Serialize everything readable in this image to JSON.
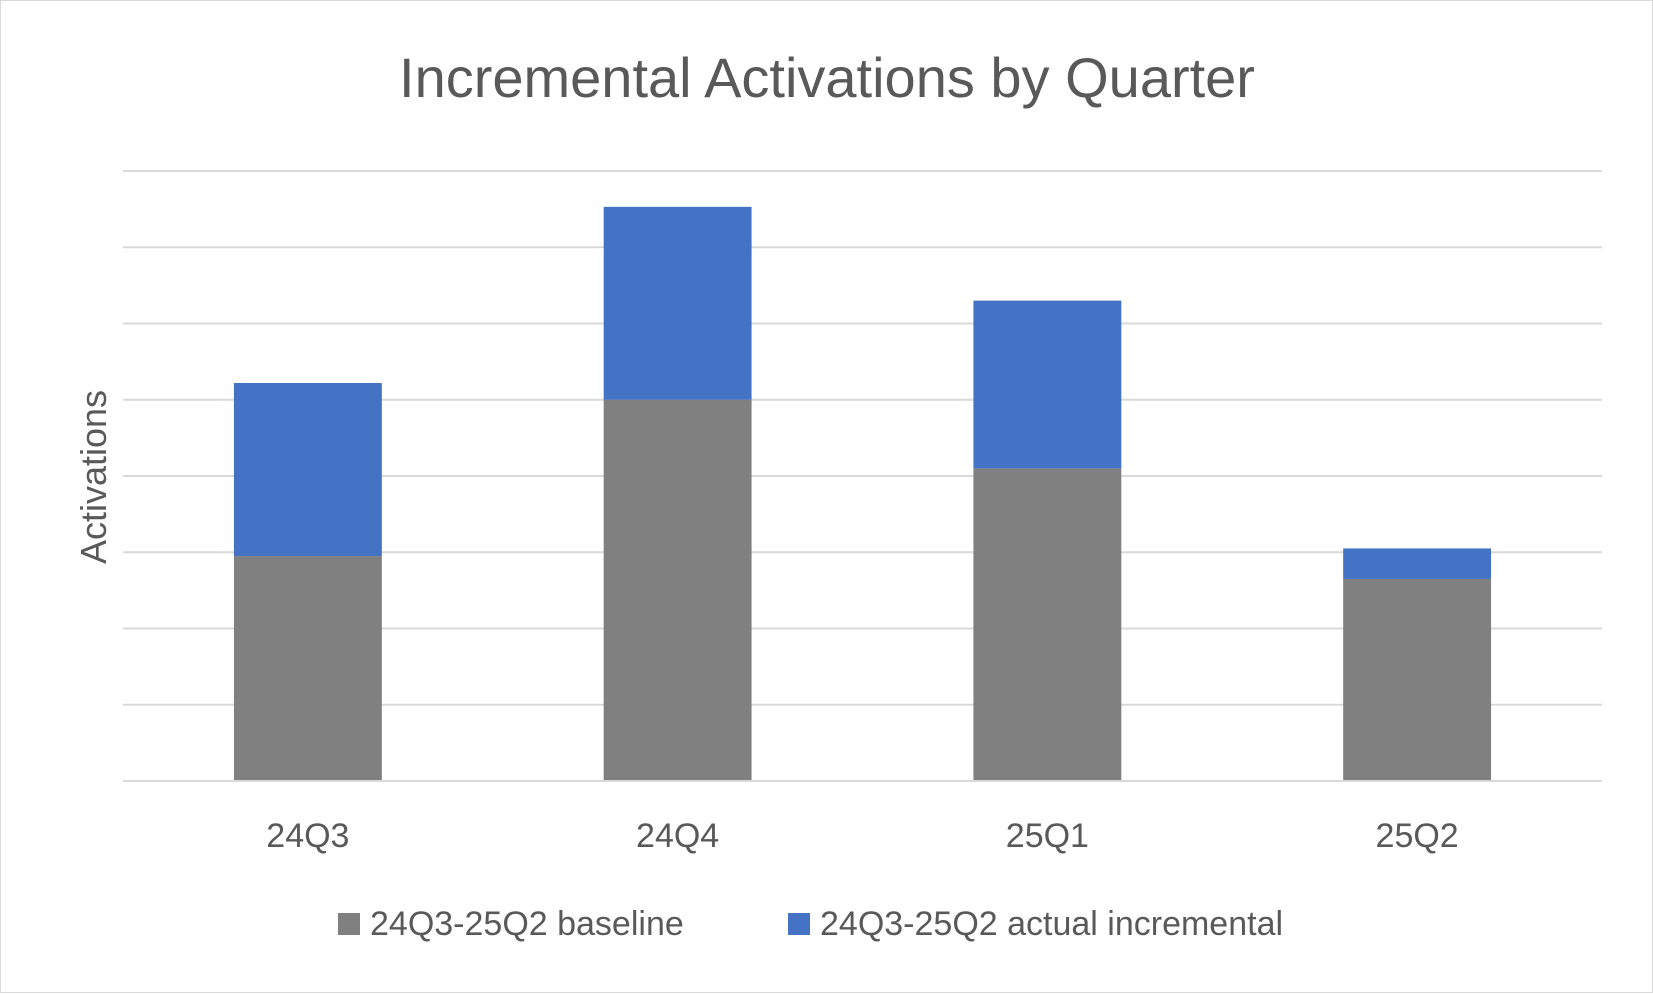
{
  "chart_data": {
    "type": "bar",
    "stacked": true,
    "title": "Incremental Activations by Quarter",
    "xlabel": "",
    "ylabel": "Activations",
    "categories": [
      "24Q3",
      "24Q4",
      "25Q1",
      "25Q2"
    ],
    "series": [
      {
        "name": "24Q3-25Q2 baseline",
        "color": "#808080",
        "values": [
          2.95,
          5.0,
          4.1,
          2.65
        ]
      },
      {
        "name": "24Q3-25Q2 actual incremental",
        "color": "#4472C4",
        "values": [
          2.27,
          2.53,
          2.2,
          0.4
        ]
      }
    ],
    "ylim": [
      0,
      8
    ],
    "y_ticks_shown": false,
    "grid": true,
    "legend_position": "bottom"
  }
}
